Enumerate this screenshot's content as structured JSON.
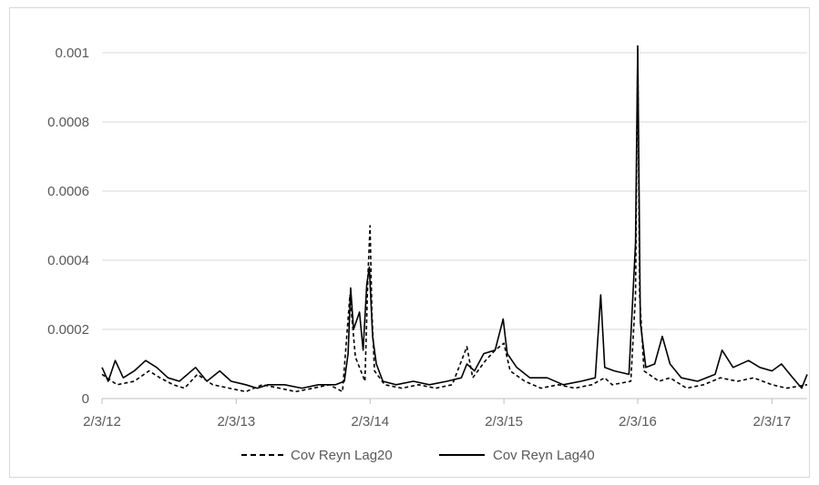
{
  "chart_data": {
    "type": "line",
    "title": "",
    "xlabel": "",
    "ylabel": "",
    "ylim": [
      0,
      0.001
    ],
    "yticks": [
      {
        "value": 0,
        "label": "0"
      },
      {
        "value": 0.0002,
        "label": "0.0002"
      },
      {
        "value": 0.0004,
        "label": "0.0004"
      },
      {
        "value": 0.0006,
        "label": "0.0006"
      },
      {
        "value": 0.0008,
        "label": "0.0008"
      },
      {
        "value": 0.001,
        "label": "0.001"
      }
    ],
    "xlim": [
      "2012-02-03",
      "2017-05-10"
    ],
    "xticks": [
      {
        "value": "2012-02-03",
        "label": "2/3/12"
      },
      {
        "value": "2013-02-03",
        "label": "2/3/13"
      },
      {
        "value": "2014-02-03",
        "label": "2/3/14"
      },
      {
        "value": "2015-02-03",
        "label": "2/3/15"
      },
      {
        "value": "2016-02-03",
        "label": "2/3/16"
      },
      {
        "value": "2017-02-03",
        "label": "2/3/17"
      }
    ],
    "grid": "horizontal",
    "legend_position": "bottom",
    "series": [
      {
        "name": "Cov Reyn Lag20",
        "style": "dashed",
        "color": "#000000",
        "points": [
          [
            "2012-02-03",
            7e-05
          ],
          [
            "2012-03-15",
            4e-05
          ],
          [
            "2012-05-01",
            5e-05
          ],
          [
            "2012-06-10",
            8e-05
          ],
          [
            "2012-07-10",
            6e-05
          ],
          [
            "2012-08-15",
            4e-05
          ],
          [
            "2012-09-15",
            3e-05
          ],
          [
            "2012-10-20",
            7e-05
          ],
          [
            "2012-12-01",
            4e-05
          ],
          [
            "2013-01-15",
            3e-05
          ],
          [
            "2013-03-01",
            2e-05
          ],
          [
            "2013-04-15",
            4e-05
          ],
          [
            "2013-06-01",
            3e-05
          ],
          [
            "2013-07-15",
            2e-05
          ],
          [
            "2013-09-01",
            3e-05
          ],
          [
            "2013-10-15",
            4e-05
          ],
          [
            "2013-11-20",
            2e-05
          ],
          [
            "2013-12-10",
            0.0003
          ],
          [
            "2013-12-25",
            0.00012
          ],
          [
            "2014-01-20",
            5e-05
          ],
          [
            "2014-01-28",
            0.00035
          ],
          [
            "2014-02-03",
            0.0005
          ],
          [
            "2014-02-08",
            0.00025
          ],
          [
            "2014-02-15",
            8e-05
          ],
          [
            "2014-03-15",
            4e-05
          ],
          [
            "2014-05-01",
            3e-05
          ],
          [
            "2014-06-15",
            4e-05
          ],
          [
            "2014-08-01",
            3e-05
          ],
          [
            "2014-09-15",
            4e-05
          ],
          [
            "2014-10-25",
            0.00015
          ],
          [
            "2014-11-10",
            6e-05
          ],
          [
            "2014-12-15",
            0.00011
          ],
          [
            "2015-01-10",
            0.00014
          ],
          [
            "2015-02-03",
            0.00016
          ],
          [
            "2015-02-20",
            8e-05
          ],
          [
            "2015-04-01",
            5e-05
          ],
          [
            "2015-05-15",
            3e-05
          ],
          [
            "2015-07-01",
            4e-05
          ],
          [
            "2015-08-15",
            3e-05
          ],
          [
            "2015-10-01",
            4e-05
          ],
          [
            "2015-11-05",
            6e-05
          ],
          [
            "2015-11-25",
            4e-05
          ],
          [
            "2016-01-15",
            5e-05
          ],
          [
            "2016-01-28",
            0.0003
          ],
          [
            "2016-02-03",
            0.00101
          ],
          [
            "2016-02-08",
            0.0003
          ],
          [
            "2016-02-20",
            8e-05
          ],
          [
            "2016-04-01",
            5e-05
          ],
          [
            "2016-05-01",
            6e-05
          ],
          [
            "2016-06-15",
            3e-05
          ],
          [
            "2016-08-01",
            4e-05
          ],
          [
            "2016-09-15",
            6e-05
          ],
          [
            "2016-11-01",
            5e-05
          ],
          [
            "2016-12-15",
            6e-05
          ],
          [
            "2017-02-03",
            4e-05
          ],
          [
            "2017-03-15",
            3e-05
          ],
          [
            "2017-05-10",
            4e-05
          ]
        ]
      },
      {
        "name": "Cov Reyn Lag40",
        "style": "solid",
        "color": "#000000",
        "points": [
          [
            "2012-02-03",
            9e-05
          ],
          [
            "2012-02-20",
            5e-05
          ],
          [
            "2012-03-10",
            0.00011
          ],
          [
            "2012-04-01",
            6e-05
          ],
          [
            "2012-05-01",
            8e-05
          ],
          [
            "2012-06-01",
            0.00011
          ],
          [
            "2012-07-01",
            9e-05
          ],
          [
            "2012-08-01",
            6e-05
          ],
          [
            "2012-09-01",
            5e-05
          ],
          [
            "2012-10-15",
            9e-05
          ],
          [
            "2012-11-15",
            5e-05
          ],
          [
            "2012-12-20",
            8e-05
          ],
          [
            "2013-01-20",
            5e-05
          ],
          [
            "2013-03-01",
            4e-05
          ],
          [
            "2013-04-01",
            3e-05
          ],
          [
            "2013-05-01",
            4e-05
          ],
          [
            "2013-06-15",
            4e-05
          ],
          [
            "2013-08-01",
            3e-05
          ],
          [
            "2013-09-15",
            4e-05
          ],
          [
            "2013-11-01",
            4e-05
          ],
          [
            "2013-11-25",
            5e-05
          ],
          [
            "2013-12-05",
            0.00013
          ],
          [
            "2013-12-12",
            0.00032
          ],
          [
            "2013-12-20",
            0.0002
          ],
          [
            "2014-01-05",
            0.00025
          ],
          [
            "2014-01-15",
            0.00014
          ],
          [
            "2014-01-25",
            0.00033
          ],
          [
            "2014-02-01",
            0.00038
          ],
          [
            "2014-02-10",
            0.00018
          ],
          [
            "2014-02-20",
            0.0001
          ],
          [
            "2014-03-10",
            5e-05
          ],
          [
            "2014-04-15",
            4e-05
          ],
          [
            "2014-06-01",
            5e-05
          ],
          [
            "2014-07-15",
            4e-05
          ],
          [
            "2014-09-01",
            5e-05
          ],
          [
            "2014-10-10",
            6e-05
          ],
          [
            "2014-10-25",
            0.0001
          ],
          [
            "2014-11-15",
            8e-05
          ],
          [
            "2014-12-10",
            0.00013
          ],
          [
            "2015-01-10",
            0.00014
          ],
          [
            "2015-02-01",
            0.00023
          ],
          [
            "2015-02-12",
            0.00013
          ],
          [
            "2015-03-10",
            9e-05
          ],
          [
            "2015-04-15",
            6e-05
          ],
          [
            "2015-06-01",
            6e-05
          ],
          [
            "2015-07-15",
            4e-05
          ],
          [
            "2015-09-01",
            5e-05
          ],
          [
            "2015-10-10",
            6e-05
          ],
          [
            "2015-10-25",
            0.0003
          ],
          [
            "2015-11-05",
            9e-05
          ],
          [
            "2015-12-01",
            8e-05
          ],
          [
            "2016-01-10",
            7e-05
          ],
          [
            "2016-01-28",
            0.00045
          ],
          [
            "2016-02-03",
            0.00102
          ],
          [
            "2016-02-10",
            0.00022
          ],
          [
            "2016-02-25",
            9e-05
          ],
          [
            "2016-03-20",
            0.0001
          ],
          [
            "2016-04-10",
            0.00018
          ],
          [
            "2016-05-01",
            0.0001
          ],
          [
            "2016-06-01",
            6e-05
          ],
          [
            "2016-07-15",
            5e-05
          ],
          [
            "2016-09-01",
            7e-05
          ],
          [
            "2016-09-20",
            0.00014
          ],
          [
            "2016-10-20",
            9e-05
          ],
          [
            "2016-12-01",
            0.00011
          ],
          [
            "2017-01-01",
            9e-05
          ],
          [
            "2017-02-03",
            8e-05
          ],
          [
            "2017-03-01",
            0.0001
          ],
          [
            "2017-04-01",
            6e-05
          ],
          [
            "2017-04-25",
            3e-05
          ],
          [
            "2017-05-10",
            7e-05
          ]
        ]
      }
    ]
  }
}
